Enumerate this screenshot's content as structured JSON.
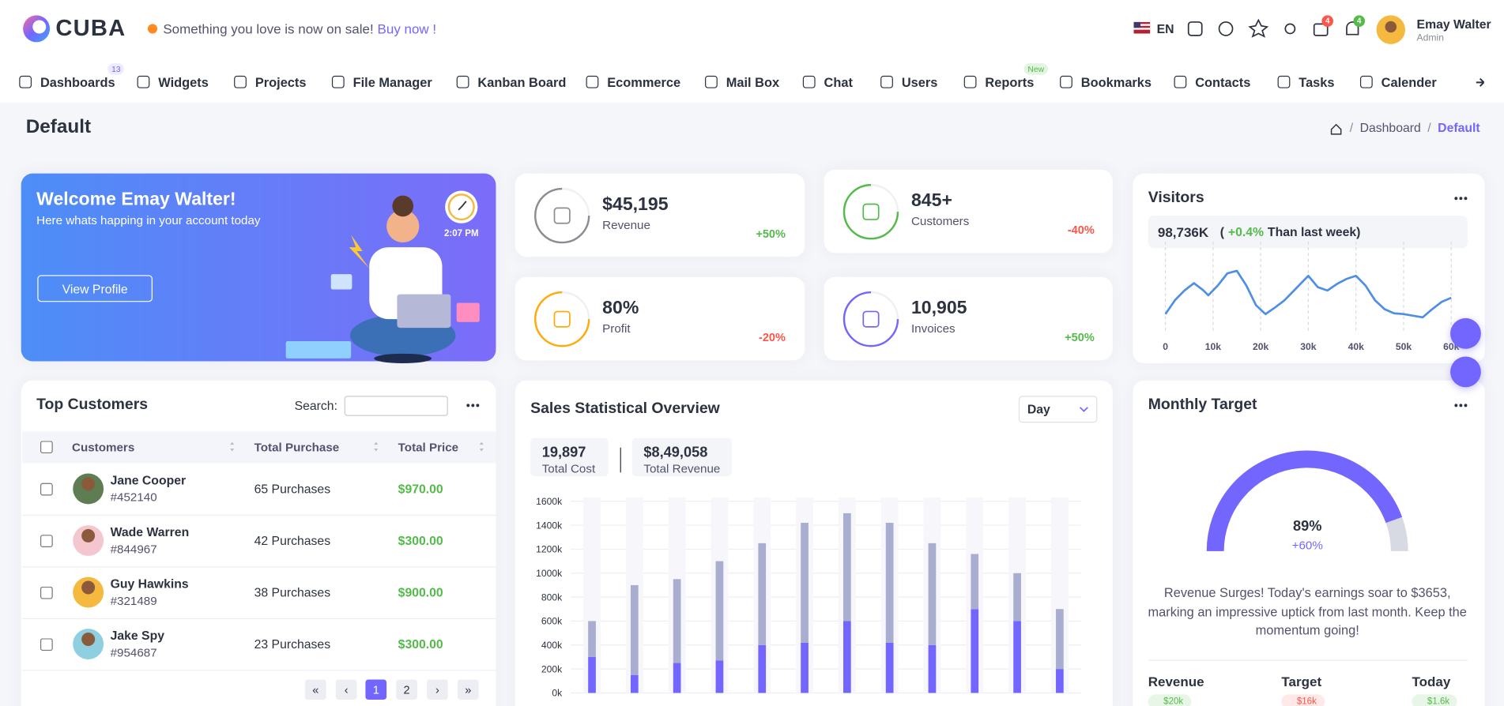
{
  "header": {
    "logo": "CUBA",
    "promo": "Something you love is now on sale!",
    "promo_link": "Buy now !",
    "language": "EN",
    "cart_badge": "4",
    "notification_badge": "4",
    "user": {
      "name": "Emay Walter",
      "role": "Admin"
    }
  },
  "nav": [
    {
      "label": "Dashboards",
      "badge": "13"
    },
    {
      "label": "Widgets"
    },
    {
      "label": "Projects"
    },
    {
      "label": "File Manager"
    },
    {
      "label": "Kanban Board"
    },
    {
      "label": "Ecommerce"
    },
    {
      "label": "Mail Box"
    },
    {
      "label": "Chat"
    },
    {
      "label": "Users"
    },
    {
      "label": "Reports",
      "badge": "New"
    },
    {
      "label": "Bookmarks"
    },
    {
      "label": "Contacts"
    },
    {
      "label": "Tasks"
    },
    {
      "label": "Calender"
    }
  ],
  "page": {
    "title": "Default",
    "breadcrumb": {
      "items": [
        "Dashboard",
        "Default"
      ],
      "separator": "/"
    }
  },
  "welcome": {
    "title": "Welcome Emay Walter!",
    "subtitle": "Here whats happing in your account today",
    "button": "View Profile",
    "time": "2:07 PM"
  },
  "stats": [
    {
      "value": "$45,195",
      "label": "Revenue",
      "change": "+50%",
      "color": "#8a8d93"
    },
    {
      "value": "845+",
      "label": "Customers",
      "change": "-40%",
      "color": "#54ba4a"
    },
    {
      "value": "80%",
      "label": "Profit",
      "change": "-20%",
      "color": "#ffaa05"
    },
    {
      "value": "10,905",
      "label": "Invoices",
      "change": "+50%",
      "color": "#7366ff"
    }
  ],
  "visitors": {
    "title": "Visitors",
    "total": "98,736K",
    "comparison": {
      "prefix": "(",
      "change": "+0.4%",
      "text": "Than last week)"
    },
    "chart_data": {
      "type": "line",
      "color": "#4d8ee6",
      "x": [
        0,
        2000,
        4000,
        6000,
        8000,
        9000,
        11000,
        13000,
        15000,
        17000,
        19000,
        21000,
        23000,
        25000,
        27000,
        29000,
        30000,
        32000,
        34000,
        36000,
        38000,
        40000,
        42000,
        44000,
        46000,
        48000,
        50000,
        52000,
        54000,
        56000,
        58000,
        60000
      ],
      "values": [
        18,
        35,
        47,
        56,
        47,
        41,
        53,
        68,
        71,
        53,
        29,
        18,
        26,
        35,
        47,
        59,
        65,
        51,
        47,
        55,
        61,
        65,
        53,
        35,
        24,
        19,
        18,
        16,
        14,
        24,
        33,
        38
      ],
      "xlim": [
        0,
        60000
      ],
      "ylim": [
        0,
        100
      ],
      "xticks": [
        0,
        {
          "value": 10000,
          "label": "10k"
        },
        {
          "value": 20000,
          "label": "20k"
        },
        {
          "value": 30000,
          "label": "30k"
        },
        {
          "value": 40000,
          "label": "40k"
        },
        {
          "value": 50000,
          "label": "50k"
        },
        {
          "value": 60000,
          "label": "60k"
        }
      ]
    }
  },
  "customers": {
    "title": "Top Customers",
    "search_label": "Search:",
    "columns": [
      "Customers",
      "Total Purchase",
      "Total Price"
    ],
    "rows": [
      {
        "name": "Jane Cooper",
        "id": "#452140",
        "purchases": "65 Purchases",
        "price": "$970.00"
      },
      {
        "name": "Wade Warren",
        "id": "#844967",
        "purchases": "42 Purchases",
        "price": "$300.00"
      },
      {
        "name": "Guy Hawkins",
        "id": "#321489",
        "purchases": "38 Purchases",
        "price": "$900.00"
      },
      {
        "name": "Jake Spy",
        "id": "#954687",
        "purchases": "23 Purchases",
        "price": "$300.00"
      }
    ],
    "pagination": [
      "«",
      "‹",
      "1",
      "2",
      "›",
      "»"
    ]
  },
  "sales": {
    "title": "Sales Statistical Overview",
    "period": "Day",
    "summary": [
      {
        "value": "19,897",
        "label": "Total Cost"
      },
      {
        "value": "$8,49,058",
        "label": "Total Revenue"
      }
    ],
    "chart_data": {
      "type": "bar",
      "stacked": true,
      "categories": [
        null,
        null,
        null,
        null,
        null,
        null,
        null,
        null,
        null,
        null,
        null,
        null
      ],
      "series": [
        {
          "color": "#7366ff",
          "values": [
            300000,
            150000,
            250000,
            270000,
            400000,
            420000,
            600000,
            420000,
            400000,
            700000,
            600000,
            200000
          ]
        },
        {
          "color": "#a9adcf",
          "values": [
            300000,
            750000,
            700000,
            830000,
            850000,
            1000000,
            900000,
            1000000,
            850000,
            460000,
            400000,
            500000
          ]
        }
      ],
      "ylim": [
        0,
        1600000
      ],
      "yticks": [
        {
          "value": 0,
          "label": "0k"
        },
        {
          "value": 200000,
          "label": "200k"
        },
        {
          "value": 400000,
          "label": "400k"
        },
        {
          "value": 600000,
          "label": "600k"
        },
        {
          "value": 800000,
          "label": "800k"
        },
        {
          "value": 1000000,
          "label": "1000k"
        },
        {
          "value": 1200000,
          "label": "1200k"
        },
        {
          "value": 1400000,
          "label": "1400k"
        },
        {
          "value": 1600000,
          "label": "1600k"
        }
      ],
      "grid": true
    }
  },
  "target": {
    "title": "Monthly Target",
    "chart_data": {
      "type": "gauge",
      "values": [
        89
      ],
      "value_labels": [
        "89%"
      ],
      "ylim": [
        0,
        100
      ],
      "color": "#7366ff"
    },
    "change": "+60%",
    "message": "Revenue Surges! Today's earnings soar to $3653, marking an impressive uptick from last month. Keep the momentum going!",
    "metrics": [
      {
        "label": "Revenue",
        "badge": "$20k",
        "color": "#54ba4a"
      },
      {
        "label": "Target",
        "badge": "$16k",
        "color": "#fc564a"
      },
      {
        "label": "Today",
        "badge": "$1.6k",
        "color": "#54ba4a"
      }
    ]
  }
}
